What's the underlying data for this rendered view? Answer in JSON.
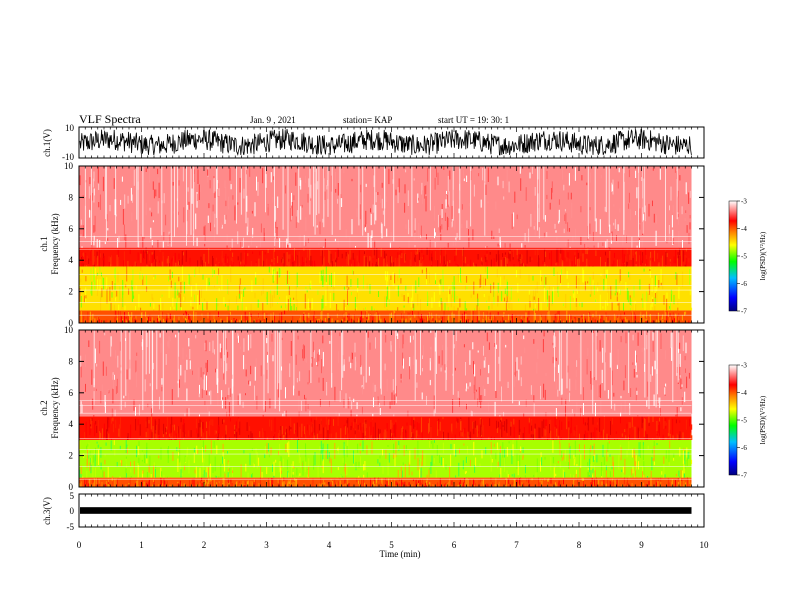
{
  "header": {
    "title": "VLF Spectra",
    "date": "Jan. 9 , 2021",
    "station": "station= KAP",
    "start": "start UT =  19: 30: 1"
  },
  "colors": {
    "background": "#ffffff",
    "frame": "#000000",
    "colormap": [
      "#00007f",
      "#0000ff",
      "#00bfff",
      "#00ff00",
      "#ffff00",
      "#ff7f00",
      "#ff0000",
      "#ffffff"
    ]
  },
  "chart_data": [
    {
      "type": "line",
      "panel": "waveform-ch1",
      "ylabel": "ch.1(V)",
      "ylim": [
        -10,
        10
      ],
      "yticks": [
        "10",
        "-10"
      ],
      "note_estimated_envelope": [
        -8,
        9
      ],
      "xlim": [
        0,
        10
      ]
    },
    {
      "type": "heatmap",
      "panel": "spectrogram-ch1",
      "ylabel_line1": "ch.1",
      "ylabel_line2": "Frequency (kHz)",
      "ylim": [
        0,
        10
      ],
      "yticks": [
        "0",
        "2",
        "4",
        "6",
        "8",
        "10"
      ],
      "xlim": [
        0,
        10
      ],
      "data_end_min": 9.8,
      "bands_kHz": [
        {
          "from": 0,
          "to": 0.8,
          "level": "orange-red"
        },
        {
          "from": 0.8,
          "to": 3.6,
          "level": "yellow-green"
        },
        {
          "from": 3.6,
          "to": 4.8,
          "level": "red"
        },
        {
          "from": 4.8,
          "to": 10,
          "level": "pink-white"
        }
      ],
      "colorbar": {
        "label": "log(PSD)(V²/Hz)",
        "range": [
          -7,
          -3
        ],
        "ticks": [
          "-3",
          "-4",
          "-5",
          "-6",
          "-7"
        ]
      }
    },
    {
      "type": "heatmap",
      "panel": "spectrogram-ch2",
      "ylabel_line1": "ch.2",
      "ylabel_line2": "Frequency (kHz)",
      "ylim": [
        0,
        10
      ],
      "yticks": [
        "0",
        "2",
        "4",
        "6",
        "8",
        "10"
      ],
      "xlim": [
        0,
        10
      ],
      "data_end_min": 9.8,
      "bands_kHz": [
        {
          "from": 0,
          "to": 0.6,
          "level": "orange-red"
        },
        {
          "from": 0.6,
          "to": 3.0,
          "level": "green-yellow"
        },
        {
          "from": 3.0,
          "to": 4.5,
          "level": "red"
        },
        {
          "from": 4.5,
          "to": 10,
          "level": "pink-white"
        }
      ],
      "colorbar": {
        "label": "log(PSD)(V²/Hz)",
        "range": [
          -7,
          -3
        ],
        "ticks": [
          "-3",
          "-4",
          "-5",
          "-6",
          "-7"
        ]
      }
    },
    {
      "type": "line",
      "panel": "waveform-ch3",
      "ylabel": "ch.3(V)",
      "ylim": [
        -5,
        5
      ],
      "yticks": [
        "5",
        "0",
        "-5"
      ],
      "note_estimated_envelope": [
        -0.4,
        0.4
      ],
      "xlim": [
        0,
        10
      ],
      "xlabel": "Time (min)",
      "xticks": [
        "0",
        "1",
        "2",
        "3",
        "4",
        "5",
        "6",
        "7",
        "8",
        "9",
        "10"
      ]
    }
  ]
}
